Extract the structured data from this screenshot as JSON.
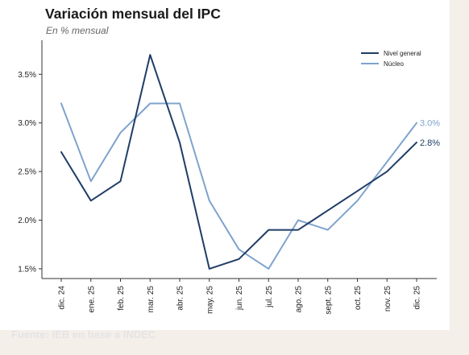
{
  "title": "Variación mensual del IPC",
  "subtitle": "En % mensual",
  "source": "Fuente: IEB en base a INDEC",
  "colors": {
    "nivel_general": "#1f3d66",
    "nucleo": "#7ea3cd",
    "background": "#f5efea"
  },
  "chart_data": {
    "type": "line",
    "title": "Variación mensual del IPC",
    "subtitle": "En % mensual",
    "xlabel": "",
    "ylabel": "",
    "categories": [
      "dic. 24",
      "ene. 25",
      "feb. 25",
      "mar. 25",
      "abr. 25",
      "may. 25",
      "jun. 25",
      "jul. 25",
      "ago. 25",
      "sept. 25",
      "oct. 25",
      "nov. 25",
      "dic. 25"
    ],
    "ylim": [
      1.4,
      3.85
    ],
    "yticks": [
      1.5,
      2.0,
      2.5,
      3.0,
      3.5
    ],
    "ytick_labels": [
      "1.5%",
      "2.0%",
      "2.5%",
      "3.0%",
      "3.5%"
    ],
    "grid": false,
    "legend_position": "top-right",
    "series": [
      {
        "name": "Nivel general",
        "color": "#1f3d66",
        "values": [
          2.7,
          2.2,
          2.4,
          3.7,
          2.8,
          1.5,
          1.6,
          1.9,
          1.9,
          2.1,
          2.3,
          2.5,
          2.8
        ],
        "end_label": "2.8%"
      },
      {
        "name": "Núcleo",
        "color": "#7ea3cd",
        "values": [
          3.2,
          2.4,
          2.9,
          3.2,
          3.2,
          2.2,
          1.7,
          1.5,
          2.0,
          1.9,
          2.2,
          2.6,
          3.0
        ],
        "end_label": "3.0%"
      }
    ]
  }
}
